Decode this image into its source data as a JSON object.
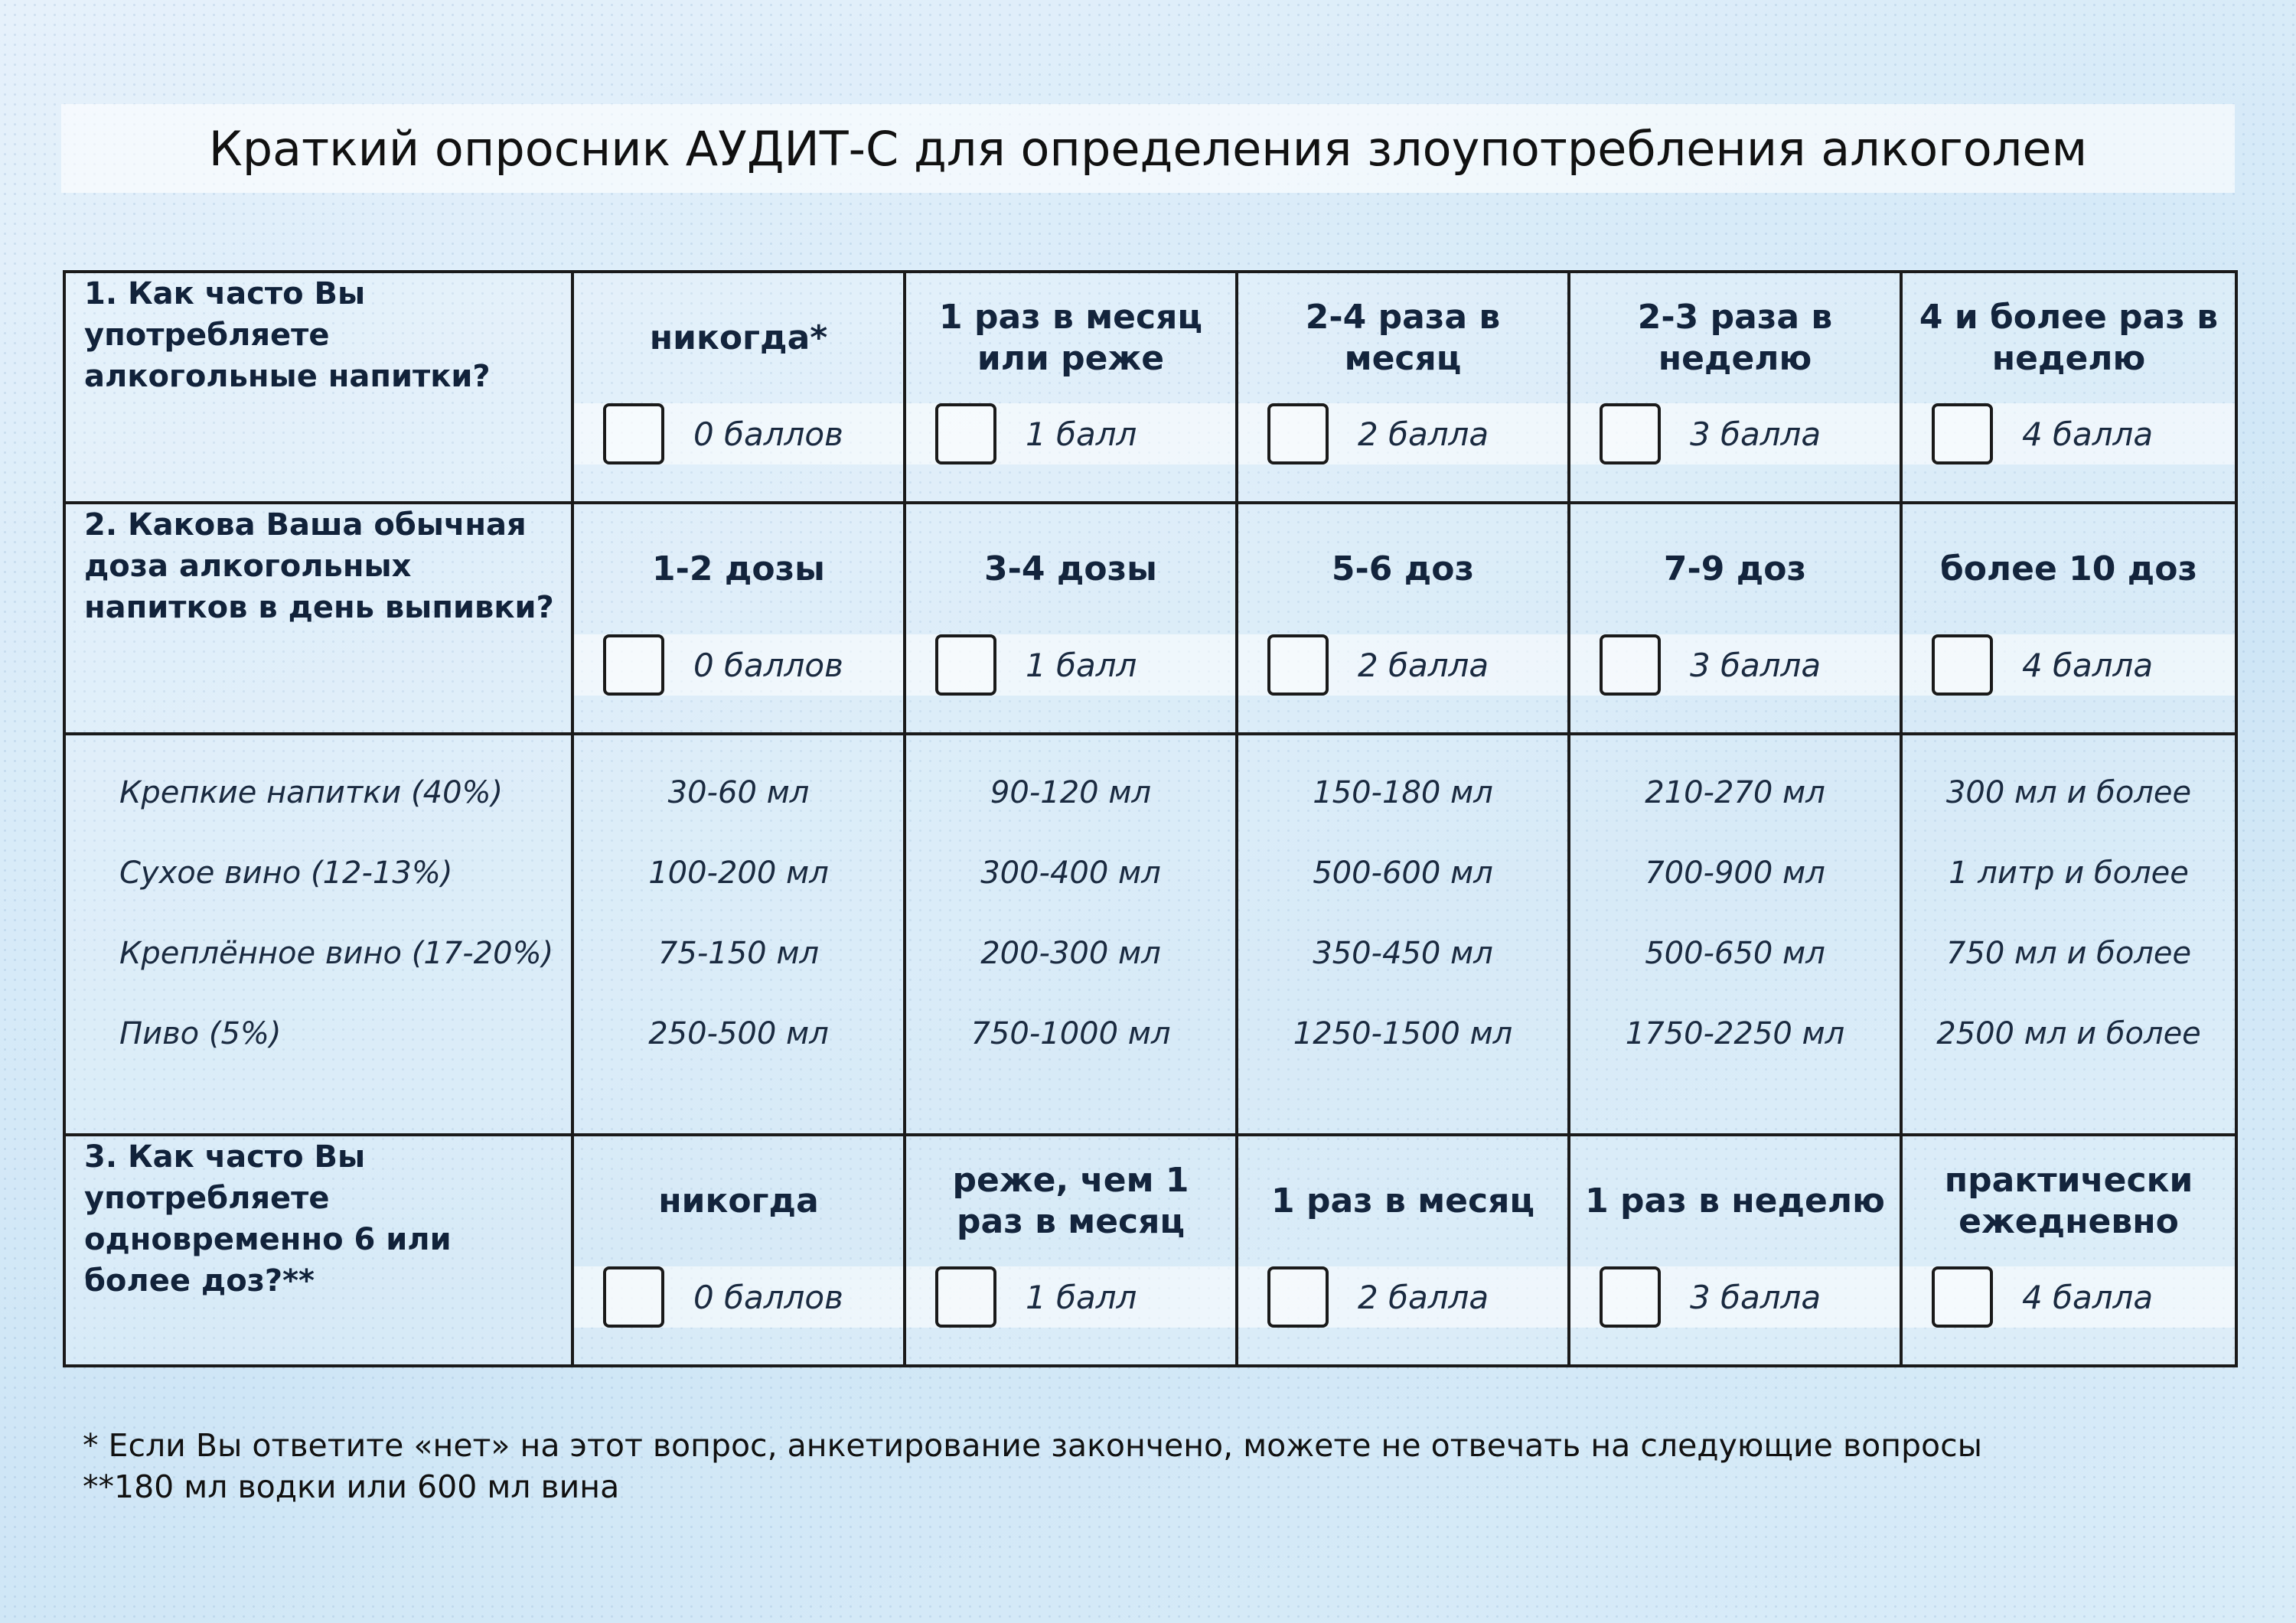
{
  "title": "Краткий опросник АУДИТ-С для определения злоупотребления алкоголем",
  "questions": [
    {
      "text": "1. Как часто Вы употребляете алкогольные напитки?",
      "options": [
        {
          "label": "никогда*",
          "score": "0 баллов"
        },
        {
          "label": "1 раз в месяц или реже",
          "score": "1 балл"
        },
        {
          "label": "2-4 раза в месяц",
          "score": "2 балла"
        },
        {
          "label": "2-3 раза в неделю",
          "score": "3 балла"
        },
        {
          "label": "4 и более раз в неделю",
          "score": "4 балла"
        }
      ]
    },
    {
      "text": "2. Какова Ваша обычная доза алкогольных напитков в день выпивки?",
      "options": [
        {
          "label": "1-2 дозы",
          "score": "0 баллов"
        },
        {
          "label": "3-4 дозы",
          "score": "1 балл"
        },
        {
          "label": "5-6 доз",
          "score": "2 балла"
        },
        {
          "label": "7-9 доз",
          "score": "3 балла"
        },
        {
          "label": "более 10 доз",
          "score": "4 балла"
        }
      ]
    },
    {
      "text": "3. Как часто Вы употребляете одновременно 6 или более доз?**",
      "options": [
        {
          "label": "никогда",
          "score": "0 баллов"
        },
        {
          "label": "реже, чем 1 раз в месяц",
          "score": "1 балл"
        },
        {
          "label": "1 раз в месяц",
          "score": "2 балла"
        },
        {
          "label": "1 раз в неделю",
          "score": "3 балла"
        },
        {
          "label": "практически ежедневно",
          "score": "4 балла"
        }
      ]
    }
  ],
  "doses": {
    "drinks": [
      "Крепкие напитки (40%)",
      "Сухое вино (12-13%)",
      "Креплённое вино (17-20%)",
      "Пиво (5%)"
    ],
    "columns": [
      [
        "30-60 мл",
        "100-200 мл",
        "75-150 мл",
        "250-500 мл"
      ],
      [
        "90-120 мл",
        "300-400 мл",
        "200-300 мл",
        "750-1000 мл"
      ],
      [
        "150-180 мл",
        "500-600 мл",
        "350-450 мл",
        "1250-1500 мл"
      ],
      [
        "210-270 мл",
        "700-900 мл",
        "500-650 мл",
        "1750-2250 мл"
      ],
      [
        "300 мл и более",
        "1 литр и более",
        "750 мл и более",
        "2500 мл и более"
      ]
    ]
  },
  "footnotes": [
    "* Если Вы ответите «нет» на этот вопрос, анкетирование закончено, можете не отвечать на следующие вопросы",
    "**180 мл водки или 600 мл вина"
  ]
}
